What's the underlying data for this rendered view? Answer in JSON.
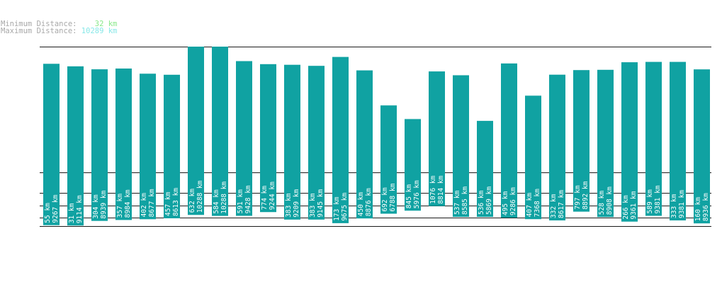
{
  "header": {
    "min_label": "Minimum Distance:",
    "min_value": "32 km",
    "max_label": "Maximum Distance:",
    "max_value": "10289 km"
  },
  "colors": {
    "bar": "#10a2a2",
    "line": "#1a1a1a",
    "min_value": "#88e888",
    "max_value": "#88e8e8",
    "header_label": "#a8a8a8"
  },
  "chart_data": {
    "type": "bar",
    "title": "",
    "xlabel": "",
    "ylabel": "",
    "bars": [
      {
        "low_label": "55 km",
        "high_label": "9267 km",
        "low": 55,
        "high": 9267
      },
      {
        "low_label": "31 km",
        "high_label": "9114 km",
        "low": 31,
        "high": 9114
      },
      {
        "low_label": "304 km",
        "high_label": "8939 km",
        "low": 304,
        "high": 8939
      },
      {
        "low_label": "357 km",
        "high_label": "8984 km",
        "low": 357,
        "high": 8984
      },
      {
        "low_label": "402 km",
        "high_label": "8677 km",
        "low": 402,
        "high": 8677
      },
      {
        "low_label": "457 km",
        "high_label": "8613 km",
        "low": 457,
        "high": 8613
      },
      {
        "low_label": "632 km",
        "high_label": "10288 km",
        "low": 632,
        "high": 10288
      },
      {
        "low_label": "584 km",
        "high_label": "10288 km",
        "low": 584,
        "high": 10288
      },
      {
        "low_label": "591 km",
        "high_label": "9428 km",
        "low": 591,
        "high": 9428
      },
      {
        "low_label": "774 km",
        "high_label": "9244 km",
        "low": 774,
        "high": 9244
      },
      {
        "low_label": "383 km",
        "high_label": "9209 km",
        "low": 383,
        "high": 9209
      },
      {
        "low_label": "383 km",
        "high_label": "9145 km",
        "low": 383,
        "high": 9145
      },
      {
        "low_label": "173 km",
        "high_label": "9675 km",
        "low": 173,
        "high": 9675
      },
      {
        "low_label": "450 km",
        "high_label": "8876 km",
        "low": 450,
        "high": 8876
      },
      {
        "low_label": "692 km",
        "high_label": "6788 km",
        "low": 692,
        "high": 6788
      },
      {
        "low_label": "845 km",
        "high_label": "5976 km",
        "low": 845,
        "high": 5976
      },
      {
        "low_label": "1076 km",
        "high_label": "8814 km",
        "low": 1076,
        "high": 8814
      },
      {
        "low_label": "537 km",
        "high_label": "8585 km",
        "low": 537,
        "high": 8585
      },
      {
        "low_label": "536 km",
        "high_label": "5869 km",
        "low": 536,
        "high": 5869
      },
      {
        "low_label": "495 km",
        "high_label": "9286 km",
        "low": 495,
        "high": 9286
      },
      {
        "low_label": "407 km",
        "high_label": "7368 km",
        "low": 407,
        "high": 7368
      },
      {
        "low_label": "332 km",
        "high_label": "8617 km",
        "low": 332,
        "high": 8617
      },
      {
        "low_label": "797 km",
        "high_label": "8892 km",
        "low": 797,
        "high": 8892
      },
      {
        "low_label": "528 km",
        "high_label": "8908 km",
        "low": 528,
        "high": 8908
      },
      {
        "low_label": "266 km",
        "high_label": "9361 km",
        "low": 266,
        "high": 9361
      },
      {
        "low_label": "589 km",
        "high_label": "9381 km",
        "low": 589,
        "high": 9381
      },
      {
        "low_label": "333 km",
        "high_label": "9381 km",
        "low": 333,
        "high": 9381
      },
      {
        "low_label": "160 km",
        "high_label": "8936 km",
        "low": 160,
        "high": 8936
      }
    ],
    "grid_lines_km": [
      10289,
      2800,
      1900,
      1100,
      500,
      0
    ],
    "grid": true,
    "legend": "none"
  }
}
